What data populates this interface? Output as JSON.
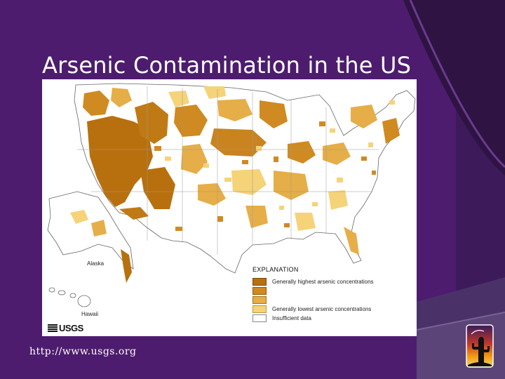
{
  "slide": {
    "title": "Arsenic Contamination in the US",
    "url": "http://www.usgs.org",
    "colors": {
      "background": "#3d1a5a",
      "title_text": "#ffffff",
      "accent_band": "#5b2e7a"
    }
  },
  "map": {
    "labels": {
      "alaska": "Alaska",
      "hawaii": "Hawaii",
      "logo": "USGS"
    },
    "legend": {
      "title": "EXPLANATION",
      "items": [
        {
          "label": "Generally highest arsenic concentrations",
          "color": "#b8700e"
        },
        {
          "label": "",
          "color": "#d08a22"
        },
        {
          "label": "",
          "color": "#e6ae48"
        },
        {
          "label": "Generally lowest arsenic concentrations",
          "color": "#f5d378"
        },
        {
          "label": "Insufficient data",
          "color": "#ffffff"
        }
      ]
    }
  },
  "logo": {
    "icon": "desert-cactus-icon"
  }
}
